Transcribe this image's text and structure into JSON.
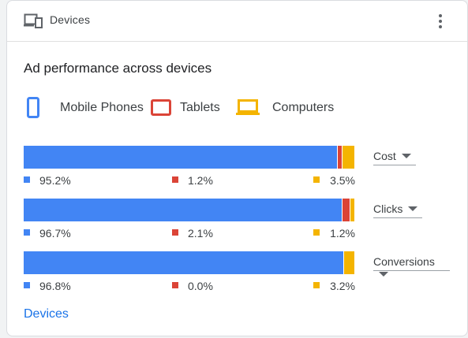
{
  "header": {
    "title": "Devices",
    "icon": "devices-icon",
    "more_icon": "more-vert-icon"
  },
  "chart_title": "Ad performance across devices",
  "colors": {
    "mobile": "#4285f4",
    "tablet": "#db4437",
    "computer": "#f4b400"
  },
  "legend": [
    {
      "label": "Mobile Phones",
      "icon": "mobile-phone-icon"
    },
    {
      "label": "Tablets",
      "icon": "tablet-icon"
    },
    {
      "label": "Computers",
      "icon": "computer-icon"
    }
  ],
  "chart_data": {
    "type": "bar",
    "stacked": true,
    "orientation": "horizontal",
    "categories": [
      "Cost",
      "Clicks",
      "Conversions"
    ],
    "series": [
      {
        "name": "Mobile Phones",
        "values": [
          95.2,
          96.7,
          96.8
        ]
      },
      {
        "name": "Tablets",
        "values": [
          1.2,
          2.1,
          0.0
        ]
      },
      {
        "name": "Computers",
        "values": [
          3.5,
          1.2,
          3.2
        ]
      }
    ]
  },
  "rows": [
    {
      "metric": "Cost",
      "mobile": "95.2%",
      "tablet": "1.2%",
      "computer": "3.5%"
    },
    {
      "metric": "Clicks",
      "mobile": "96.7%",
      "tablet": "2.1%",
      "computer": "1.2%"
    },
    {
      "metric": "Conversions",
      "mobile": "96.8%",
      "tablet": "0.0%",
      "computer": "3.2%"
    }
  ],
  "footer_link": "Devices"
}
